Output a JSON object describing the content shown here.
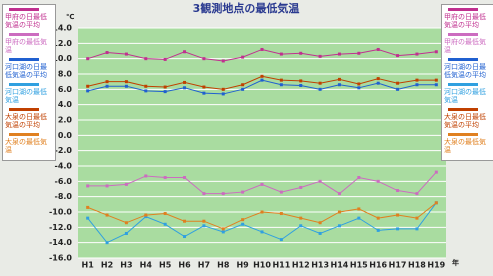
{
  "chart_data": {
    "type": "line",
    "title": "3観測地点の最低気温",
    "y_unit": "℃",
    "x_unit": "年",
    "categories": [
      "H1",
      "H2",
      "H3",
      "H4",
      "H5",
      "H6",
      "H7",
      "H8",
      "H9",
      "H10",
      "H11",
      "H12",
      "H13",
      "H14",
      "H15",
      "H16",
      "H17",
      "H18",
      "H19"
    ],
    "ylim": [
      -16,
      14
    ],
    "yticks": [
      {
        "value": 14,
        "label": "14.0"
      },
      {
        "value": 12,
        "label": "12.0"
      },
      {
        "value": 10,
        "label": "10.0"
      },
      {
        "value": 8,
        "label": "8.0"
      },
      {
        "value": 6,
        "label": "6.0"
      },
      {
        "value": 4,
        "label": "4.0"
      },
      {
        "value": 2,
        "label": "2.0"
      },
      {
        "value": 0,
        "label": "0.0"
      },
      {
        "value": -2,
        "label": "-2.0"
      },
      {
        "value": -4,
        "label": "-4.0"
      },
      {
        "value": -6,
        "label": "-6.0"
      },
      {
        "value": -8,
        "label": "-8.0"
      },
      {
        "value": -10,
        "label": "-10.0"
      },
      {
        "value": -12,
        "label": "-12.0"
      },
      {
        "value": -14,
        "label": "-14.0"
      },
      {
        "value": -16,
        "label": "-16.0"
      }
    ],
    "grid": true,
    "series": [
      {
        "name": "甲府の日最低気温の平均",
        "color": "#c0308f",
        "values": [
          10.0,
          10.8,
          10.6,
          10.0,
          9.9,
          10.9,
          10.0,
          9.7,
          10.2,
          11.2,
          10.6,
          10.7,
          10.3,
          10.6,
          10.7,
          11.2,
          10.4,
          10.6,
          10.9
        ]
      },
      {
        "name": "甲府の最低気温",
        "color": "#cc6cc0",
        "values": [
          -6.6,
          -6.6,
          -6.4,
          -5.3,
          -5.5,
          -5.5,
          -7.6,
          -7.6,
          -7.4,
          -6.4,
          -7.4,
          -6.8,
          -6.0,
          -7.6,
          -5.5,
          -6.0,
          -7.2,
          -7.6,
          -4.8
        ]
      },
      {
        "name": "河口湖の日最低気温の平均",
        "color": "#2060d0",
        "values": [
          5.8,
          6.4,
          6.4,
          5.8,
          5.7,
          6.2,
          5.5,
          5.4,
          6.0,
          7.2,
          6.6,
          6.5,
          6.0,
          6.6,
          6.2,
          6.8,
          6.0,
          6.6,
          6.6
        ]
      },
      {
        "name": "河口湖の最低気温",
        "color": "#30a0e0",
        "values": [
          -10.8,
          -14.0,
          -12.8,
          -10.6,
          -11.6,
          -13.2,
          -11.8,
          -12.6,
          -11.6,
          -12.6,
          -13.6,
          -11.8,
          -12.8,
          -11.8,
          -10.8,
          -12.4,
          -12.2,
          -12.2,
          -8.8
        ]
      },
      {
        "name": "大泉の日最低気温の平均",
        "color": "#c04000",
        "values": [
          6.4,
          7.0,
          7.0,
          6.4,
          6.3,
          6.9,
          6.3,
          6.0,
          6.6,
          7.7,
          7.2,
          7.1,
          6.8,
          7.3,
          6.7,
          7.4,
          6.8,
          7.2,
          7.2
        ]
      },
      {
        "name": "大泉の最低気温",
        "color": "#e08020",
        "values": [
          -9.4,
          -10.4,
          -11.4,
          -10.4,
          -10.2,
          -11.2,
          -11.2,
          -12.2,
          -11.0,
          -10.0,
          -10.2,
          -10.8,
          -11.4,
          -10.0,
          -9.6,
          -10.8,
          -10.4,
          -10.8,
          -8.8
        ]
      }
    ]
  }
}
